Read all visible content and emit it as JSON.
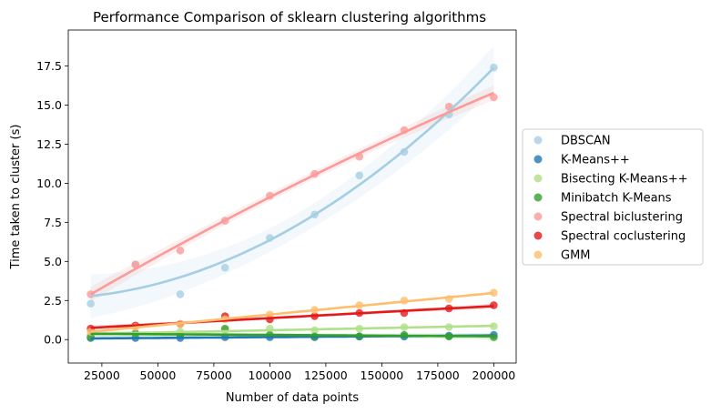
{
  "chart_data": {
    "type": "scatter",
    "title": "Performance Comparison of sklearn clustering algorithms",
    "xlabel": "Number of data points",
    "ylabel": "Time taken to cluster (s)",
    "xlim": [
      10000,
      210000
    ],
    "ylim": [
      -1.5,
      19.8
    ],
    "xticks": [
      25000,
      50000,
      75000,
      100000,
      125000,
      150000,
      175000,
      200000
    ],
    "yticks": [
      0.0,
      2.5,
      5.0,
      7.5,
      10.0,
      12.5,
      15.0,
      17.5
    ],
    "xtick_labels": [
      "25000",
      "50000",
      "75000",
      "100000",
      "125000",
      "150000",
      "175000",
      "200000"
    ],
    "ytick_labels": [
      "0.0",
      "2.5",
      "5.0",
      "7.5",
      "10.0",
      "12.5",
      "15.0",
      "17.5"
    ],
    "legend_position": "center-right outside",
    "x": [
      20000,
      40000,
      60000,
      80000,
      100000,
      120000,
      140000,
      160000,
      180000,
      200000
    ],
    "series": [
      {
        "name": "DBSCAN",
        "color": "#a6cee3",
        "fit": "quadratic",
        "values": [
          2.3,
          4.8,
          2.9,
          4.6,
          6.5,
          8.0,
          10.5,
          12.0,
          14.4,
          17.4
        ]
      },
      {
        "name": "K-Means++",
        "color": "#1f78b4",
        "fit": "linear",
        "values": [
          0.1,
          0.1,
          0.1,
          0.15,
          0.15,
          0.15,
          0.2,
          0.2,
          0.25,
          0.3
        ]
      },
      {
        "name": "Bisecting K-Means++",
        "color": "#b2df8a",
        "fit": "linear",
        "values": [
          0.3,
          0.4,
          0.5,
          0.6,
          0.7,
          0.6,
          0.7,
          0.8,
          0.8,
          0.85
        ]
      },
      {
        "name": "Minibatch K-Means",
        "color": "#33a02c",
        "fit": "linear",
        "values": [
          0.15,
          0.4,
          0.3,
          0.7,
          0.3,
          0.2,
          0.2,
          0.3,
          0.2,
          0.15
        ]
      },
      {
        "name": "Spectral biclustering",
        "color": "#fb9a99",
        "fit": "quadratic",
        "values": [
          2.9,
          4.8,
          5.7,
          7.6,
          9.2,
          10.6,
          11.7,
          13.4,
          14.9,
          15.5
        ]
      },
      {
        "name": "Spectral coclustering",
        "color": "#e31a1c",
        "fit": "linear",
        "values": [
          0.7,
          0.9,
          1.0,
          1.5,
          1.3,
          1.5,
          1.7,
          1.7,
          2.0,
          2.2
        ]
      },
      {
        "name": "GMM",
        "color": "#fdbf6f",
        "fit": "linear",
        "values": [
          0.5,
          0.8,
          1.0,
          1.3,
          1.6,
          1.9,
          2.2,
          2.5,
          2.6,
          3.0
        ]
      }
    ]
  }
}
